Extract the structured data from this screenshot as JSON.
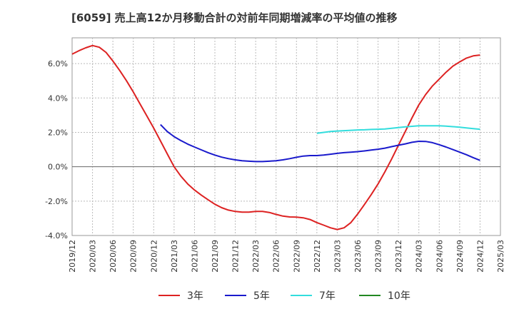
{
  "chart_data": {
    "type": "line",
    "title": "[6059]  売上高12か月移動合計の対前年同期増減率の平均値の推移",
    "xlabel": "",
    "ylabel": "",
    "x_ticks": [
      "2019/12",
      "2020/03",
      "2020/06",
      "2020/09",
      "2020/12",
      "2021/03",
      "2021/06",
      "2021/09",
      "2021/12",
      "2022/03",
      "2022/06",
      "2022/09",
      "2022/12",
      "2023/03",
      "2023/06",
      "2023/09",
      "2023/12",
      "2024/03",
      "2024/06",
      "2024/09",
      "2024/12",
      "2025/03"
    ],
    "y_ticks": [
      "-4.0%",
      "-2.0%",
      "0.0%",
      "2.0%",
      "4.0%",
      "6.0%"
    ],
    "ylim": [
      -4.0,
      7.5
    ],
    "grid": true,
    "legend_position": "bottom",
    "series": [
      {
        "name": "3年",
        "color": "#dd2222",
        "points": [
          [
            "2019/12",
            6.55
          ],
          [
            "2020/01",
            6.75
          ],
          [
            "2020/02",
            6.92
          ],
          [
            "2020/03",
            7.05
          ],
          [
            "2020/04",
            6.95
          ],
          [
            "2020/05",
            6.65
          ],
          [
            "2020/06",
            6.15
          ],
          [
            "2020/07",
            5.6
          ],
          [
            "2020/08",
            5.0
          ],
          [
            "2020/09",
            4.35
          ],
          [
            "2020/10",
            3.65
          ],
          [
            "2020/11",
            2.95
          ],
          [
            "2020/12",
            2.25
          ],
          [
            "2021/01",
            1.5
          ],
          [
            "2021/02",
            0.75
          ],
          [
            "2021/03",
            0.0
          ],
          [
            "2021/04",
            -0.55
          ],
          [
            "2021/05",
            -1.0
          ],
          [
            "2021/06",
            -1.35
          ],
          [
            "2021/07",
            -1.65
          ],
          [
            "2021/08",
            -1.92
          ],
          [
            "2021/09",
            -2.18
          ],
          [
            "2021/10",
            -2.38
          ],
          [
            "2021/11",
            -2.52
          ],
          [
            "2021/12",
            -2.6
          ],
          [
            "2022/01",
            -2.64
          ],
          [
            "2022/02",
            -2.64
          ],
          [
            "2022/03",
            -2.6
          ],
          [
            "2022/04",
            -2.6
          ],
          [
            "2022/05",
            -2.66
          ],
          [
            "2022/06",
            -2.77
          ],
          [
            "2022/07",
            -2.87
          ],
          [
            "2022/08",
            -2.92
          ],
          [
            "2022/09",
            -2.93
          ],
          [
            "2022/10",
            -2.97
          ],
          [
            "2022/11",
            -3.07
          ],
          [
            "2022/12",
            -3.25
          ],
          [
            "2023/01",
            -3.4
          ],
          [
            "2023/02",
            -3.55
          ],
          [
            "2023/03",
            -3.65
          ],
          [
            "2023/04",
            -3.55
          ],
          [
            "2023/05",
            -3.25
          ],
          [
            "2023/06",
            -2.75
          ],
          [
            "2023/07",
            -2.2
          ],
          [
            "2023/08",
            -1.62
          ],
          [
            "2023/09",
            -1.0
          ],
          [
            "2023/10",
            -0.3
          ],
          [
            "2023/11",
            0.45
          ],
          [
            "2023/12",
            1.25
          ],
          [
            "2024/01",
            2.05
          ],
          [
            "2024/02",
            2.85
          ],
          [
            "2024/03",
            3.6
          ],
          [
            "2024/04",
            4.2
          ],
          [
            "2024/05",
            4.7
          ],
          [
            "2024/06",
            5.1
          ],
          [
            "2024/07",
            5.5
          ],
          [
            "2024/08",
            5.85
          ],
          [
            "2024/09",
            6.1
          ],
          [
            "2024/10",
            6.32
          ],
          [
            "2024/11",
            6.45
          ],
          [
            "2024/12",
            6.5
          ]
        ]
      },
      {
        "name": "5年",
        "color": "#1a1acc",
        "points": [
          [
            "2021/01",
            2.45
          ],
          [
            "2021/02",
            2.05
          ],
          [
            "2021/03",
            1.75
          ],
          [
            "2021/04",
            1.52
          ],
          [
            "2021/05",
            1.32
          ],
          [
            "2021/06",
            1.15
          ],
          [
            "2021/07",
            0.98
          ],
          [
            "2021/08",
            0.82
          ],
          [
            "2021/09",
            0.68
          ],
          [
            "2021/10",
            0.56
          ],
          [
            "2021/11",
            0.47
          ],
          [
            "2021/12",
            0.4
          ],
          [
            "2022/01",
            0.35
          ],
          [
            "2022/02",
            0.32
          ],
          [
            "2022/03",
            0.3
          ],
          [
            "2022/04",
            0.3
          ],
          [
            "2022/05",
            0.32
          ],
          [
            "2022/06",
            0.35
          ],
          [
            "2022/07",
            0.4
          ],
          [
            "2022/08",
            0.47
          ],
          [
            "2022/09",
            0.55
          ],
          [
            "2022/10",
            0.62
          ],
          [
            "2022/11",
            0.65
          ],
          [
            "2022/12",
            0.65
          ],
          [
            "2023/01",
            0.68
          ],
          [
            "2023/02",
            0.73
          ],
          [
            "2023/03",
            0.78
          ],
          [
            "2023/04",
            0.82
          ],
          [
            "2023/05",
            0.85
          ],
          [
            "2023/06",
            0.88
          ],
          [
            "2023/07",
            0.92
          ],
          [
            "2023/08",
            0.97
          ],
          [
            "2023/09",
            1.02
          ],
          [
            "2023/10",
            1.08
          ],
          [
            "2023/11",
            1.17
          ],
          [
            "2023/12",
            1.25
          ],
          [
            "2024/01",
            1.33
          ],
          [
            "2024/02",
            1.42
          ],
          [
            "2024/03",
            1.48
          ],
          [
            "2024/04",
            1.47
          ],
          [
            "2024/05",
            1.4
          ],
          [
            "2024/06",
            1.28
          ],
          [
            "2024/07",
            1.15
          ],
          [
            "2024/08",
            1.0
          ],
          [
            "2024/09",
            0.85
          ],
          [
            "2024/10",
            0.7
          ],
          [
            "2024/11",
            0.53
          ],
          [
            "2024/12",
            0.37
          ]
        ]
      },
      {
        "name": "7年",
        "color": "#33dddd",
        "points": [
          [
            "2022/12",
            1.95
          ],
          [
            "2023/01",
            2.0
          ],
          [
            "2023/02",
            2.05
          ],
          [
            "2023/03",
            2.08
          ],
          [
            "2023/04",
            2.1
          ],
          [
            "2023/05",
            2.12
          ],
          [
            "2023/06",
            2.14
          ],
          [
            "2023/07",
            2.15
          ],
          [
            "2023/08",
            2.17
          ],
          [
            "2023/09",
            2.18
          ],
          [
            "2023/10",
            2.2
          ],
          [
            "2023/11",
            2.24
          ],
          [
            "2023/12",
            2.28
          ],
          [
            "2024/01",
            2.32
          ],
          [
            "2024/02",
            2.35
          ],
          [
            "2024/03",
            2.38
          ],
          [
            "2024/04",
            2.38
          ],
          [
            "2024/05",
            2.38
          ],
          [
            "2024/06",
            2.38
          ],
          [
            "2024/07",
            2.36
          ],
          [
            "2024/08",
            2.33
          ],
          [
            "2024/09",
            2.3
          ],
          [
            "2024/10",
            2.26
          ],
          [
            "2024/11",
            2.22
          ],
          [
            "2024/12",
            2.18
          ]
        ]
      },
      {
        "name": "10年",
        "color": "#228822",
        "points": []
      }
    ]
  }
}
